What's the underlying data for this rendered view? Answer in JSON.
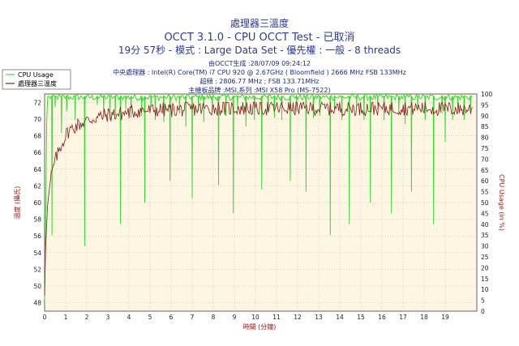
{
  "header": {
    "top_label": "處理器三溫度",
    "title": "OCCT 3.1.0 - CPU OCCT Test - 已取消",
    "subtitle": "19分 57秒 - 模式 : Large Data Set - 優先權 : 一般 - 8 threads",
    "info_lines": [
      "由OCCT生成 :28/07/09 09:24:12",
      "中央處理器 : Intel(R) Core(TM) i7 CPU 920 @ 2.67GHz ( Bloomfield ) 2666 MHz FSB 133MHz",
      "超頻 : 2806.77 MHz ; FSB 133.71MHz",
      "主機板品牌 :MSI,系列 :MSI X58 Pro (MS-7522)"
    ]
  },
  "legend": {
    "entries": [
      {
        "label": "CPU Usage",
        "color": "#33dd33"
      },
      {
        "label": "處理器三溫度",
        "color": "#8b1a1a"
      }
    ]
  },
  "colors": {
    "cpu_usage": "#33dd33",
    "temperature": "#8b1a1a",
    "plot_bg": "#fdf6e3",
    "grid": "#b0b0b0"
  },
  "chart_data": {
    "type": "line",
    "xlabel": "時間 (分鐘)",
    "ylabel_left": "溫度 (攝氏)",
    "ylabel_right": "CPU Usage (in %)",
    "xlim": [
      0,
      20.5
    ],
    "ylim_left": [
      47,
      73
    ],
    "ylim_right": [
      0,
      100
    ],
    "x_ticks": [
      0,
      1,
      2,
      3,
      4,
      5,
      6,
      7,
      8,
      9,
      10,
      11,
      12,
      13,
      14,
      15,
      16,
      17,
      18,
      19
    ],
    "y_ticks_left": [
      48,
      50,
      52,
      54,
      56,
      58,
      60,
      62,
      64,
      66,
      68,
      70,
      72
    ],
    "y_ticks_right": [
      0,
      5,
      10,
      15,
      20,
      25,
      30,
      35,
      40,
      45,
      50,
      55,
      60,
      65,
      70,
      75,
      80,
      85,
      90,
      95,
      100
    ],
    "grid": true,
    "legend_position": "top-left",
    "series": [
      {
        "name": "CPU Usage",
        "axis": "right",
        "baseline": 100,
        "start": [
          [
            0,
            5
          ],
          [
            0.05,
            40
          ],
          [
            0.1,
            88
          ],
          [
            0.15,
            99
          ]
        ],
        "dips": [
          [
            0.35,
            35
          ],
          [
            0.5,
            94
          ],
          [
            0.8,
            82
          ],
          [
            1.05,
            92
          ],
          [
            1.45,
            88
          ],
          [
            1.9,
            30
          ],
          [
            2.5,
            95
          ],
          [
            2.8,
            91
          ],
          [
            3.1,
            88
          ],
          [
            3.35,
            90
          ],
          [
            3.6,
            40
          ],
          [
            3.85,
            93
          ],
          [
            4.1,
            89
          ],
          [
            4.6,
            90
          ],
          [
            4.75,
            50
          ],
          [
            5.05,
            94
          ],
          [
            5.25,
            88
          ],
          [
            5.65,
            87
          ],
          [
            5.95,
            60
          ],
          [
            6.4,
            91
          ],
          [
            6.7,
            85
          ],
          [
            7.0,
            52
          ],
          [
            7.3,
            92
          ],
          [
            7.55,
            87
          ],
          [
            7.95,
            92
          ],
          [
            8.25,
            58
          ],
          [
            8.6,
            90
          ],
          [
            8.95,
            45
          ],
          [
            9.15,
            93
          ],
          [
            9.55,
            85
          ],
          [
            9.95,
            88
          ],
          [
            10.3,
            56
          ],
          [
            10.6,
            92
          ],
          [
            10.9,
            89
          ],
          [
            11.25,
            88
          ],
          [
            11.65,
            60
          ],
          [
            11.95,
            92
          ],
          [
            12.4,
            55
          ],
          [
            12.75,
            89
          ],
          [
            13.05,
            90
          ],
          [
            13.55,
            35
          ],
          [
            13.75,
            93
          ],
          [
            14.1,
            88
          ],
          [
            14.45,
            40
          ],
          [
            14.8,
            94
          ],
          [
            15.15,
            88
          ],
          [
            15.45,
            50
          ],
          [
            15.8,
            93
          ],
          [
            16.1,
            88
          ],
          [
            16.45,
            45
          ],
          [
            16.8,
            91
          ],
          [
            17.1,
            86
          ],
          [
            17.4,
            55
          ],
          [
            17.7,
            93
          ],
          [
            18.05,
            88
          ],
          [
            18.45,
            40
          ],
          [
            18.85,
            91
          ],
          [
            19.0,
            78
          ],
          [
            19.35,
            88
          ],
          [
            19.6,
            94
          ],
          [
            19.9,
            88
          ],
          [
            20.2,
            92
          ]
        ],
        "values_note_range": [
          30,
          100
        ]
      },
      {
        "name": "處理器三溫度",
        "axis": "left",
        "points": [
          [
            0,
            49
          ],
          [
            0.05,
            55
          ],
          [
            0.15,
            60
          ],
          [
            0.3,
            63
          ],
          [
            0.5,
            65
          ],
          [
            0.8,
            67
          ],
          [
            1.1,
            68.5
          ],
          [
            1.5,
            69.2
          ],
          [
            2,
            69.8
          ],
          [
            2.5,
            70.2
          ],
          [
            3,
            70.5
          ],
          [
            3.5,
            70.6
          ],
          [
            4,
            70.8
          ],
          [
            4.5,
            71
          ],
          [
            5,
            71
          ],
          [
            5.5,
            71.1
          ],
          [
            6,
            71.1
          ],
          [
            7,
            71.2
          ],
          [
            8,
            71.3
          ],
          [
            9,
            71.3
          ],
          [
            10,
            71.3
          ],
          [
            11,
            71.3
          ],
          [
            12,
            71.3
          ],
          [
            13,
            71.3
          ],
          [
            14,
            71.3
          ],
          [
            15,
            71.3
          ],
          [
            16,
            71.3
          ],
          [
            17,
            71.3
          ],
          [
            18,
            71.3
          ],
          [
            19,
            71.2
          ],
          [
            20.3,
            71.2
          ]
        ],
        "min": 48,
        "max": 72
      }
    ]
  }
}
